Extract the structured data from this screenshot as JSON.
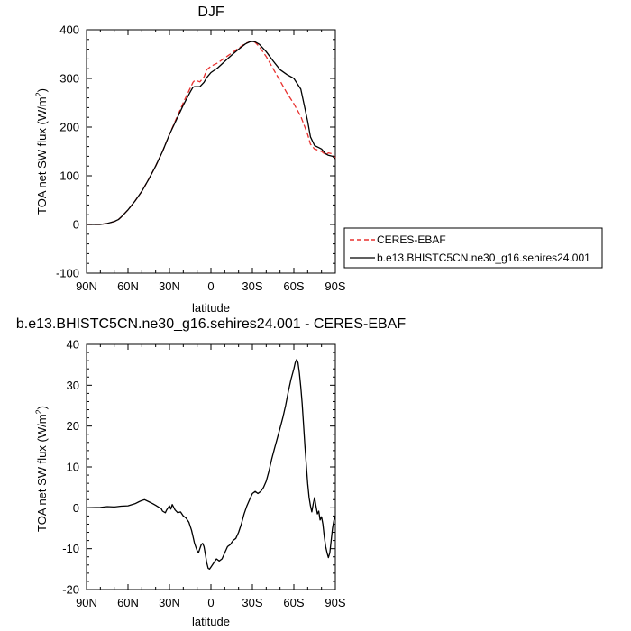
{
  "chart_data": [
    {
      "type": "line",
      "title": "DJF",
      "xlabel": "latitude",
      "ylabel": "TOA net SW flux (W/m²)",
      "ylabel_main": "TOA net SW flux (W/m",
      "ylabel_sup": "2",
      "ylabel_close": ")",
      "xlim": [
        90,
        -90
      ],
      "ylim": [
        -100,
        400
      ],
      "xticks": [
        90,
        60,
        30,
        0,
        -30,
        -60,
        -90
      ],
      "xtick_labels": [
        "90N",
        "60N",
        "30N",
        "0",
        "30S",
        "60S",
        "90S"
      ],
      "yticks": [
        -100,
        0,
        100,
        200,
        300,
        400
      ],
      "ytick_labels": [
        "-100",
        "0",
        "100",
        "200",
        "300",
        "400"
      ],
      "legend_position": "right-outside",
      "series": [
        {
          "name": "CERES-EBAF",
          "color": "#e8312f",
          "dash": "dashed",
          "x": [
            90,
            85,
            80,
            75,
            70,
            67,
            65,
            60,
            55,
            50,
            45,
            40,
            35,
            30,
            25,
            20,
            15,
            13,
            12,
            10,
            8,
            5,
            3,
            0,
            -5,
            -10,
            -15,
            -20,
            -25,
            -28,
            -30,
            -32,
            -35,
            -40,
            -45,
            -50,
            -55,
            -60,
            -65,
            -70,
            -72,
            -75,
            -78,
            -80,
            -83,
            -85,
            -88,
            -90
          ],
          "y": [
            0,
            0,
            0,
            2,
            6,
            10,
            15,
            30,
            48,
            68,
            93,
            120,
            150,
            185,
            218,
            250,
            280,
            292,
            295,
            295,
            293,
            303,
            318,
            325,
            332,
            342,
            352,
            362,
            372,
            375,
            376,
            374,
            365,
            345,
            320,
            295,
            270,
            248,
            222,
            185,
            165,
            155,
            152,
            150,
            143,
            147,
            145,
            136
          ]
        },
        {
          "name": "b.e13.BHISTC5CN.ne30_g16.sehires24.001",
          "color": "#000000",
          "dash": "solid",
          "x": [
            90,
            85,
            80,
            75,
            70,
            67,
            65,
            60,
            55,
            50,
            45,
            40,
            35,
            30,
            25,
            20,
            15,
            13,
            12,
            10,
            8,
            5,
            3,
            0,
            -5,
            -10,
            -15,
            -20,
            -25,
            -28,
            -30,
            -32,
            -35,
            -40,
            -45,
            -50,
            -55,
            -60,
            -65,
            -70,
            -72,
            -75,
            -78,
            -80,
            -83,
            -85,
            -88,
            -90
          ],
          "y": [
            0,
            0,
            0,
            2,
            6,
            10,
            15,
            30,
            48,
            68,
            93,
            120,
            150,
            185,
            215,
            245,
            272,
            282,
            283,
            283,
            283,
            292,
            302,
            312,
            322,
            335,
            348,
            360,
            371,
            375,
            376,
            375,
            370,
            355,
            336,
            318,
            308,
            300,
            278,
            212,
            180,
            162,
            158,
            155,
            145,
            142,
            140,
            135
          ]
        }
      ]
    },
    {
      "type": "line",
      "title": "b.e13.BHISTC5CN.ne30_g16.sehires24.001 - CERES-EBAF",
      "xlabel": "latitude",
      "ylabel": "TOA net SW flux (W/m²)",
      "ylabel_main": "TOA net SW flux (W/m",
      "ylabel_sup": "2",
      "ylabel_close": ")",
      "xlim": [
        90,
        -90
      ],
      "ylim": [
        -20,
        40
      ],
      "xticks": [
        90,
        60,
        30,
        0,
        -30,
        -60,
        -90
      ],
      "xtick_labels": [
        "90N",
        "60N",
        "30N",
        "0",
        "30S",
        "60S",
        "90S"
      ],
      "yticks": [
        -20,
        -10,
        0,
        10,
        20,
        30,
        40
      ],
      "ytick_labels": [
        "-20",
        "-10",
        "0",
        "10",
        "20",
        "30",
        "40"
      ],
      "series": [
        {
          "color": "#000000",
          "dash": "solid",
          "x": [
            90,
            80,
            75,
            70,
            65,
            60,
            55,
            52,
            50,
            48,
            45,
            42,
            40,
            38,
            36,
            35,
            33,
            32,
            30,
            29,
            28,
            26,
            24,
            22,
            20,
            18,
            16,
            14,
            13,
            12,
            11,
            10,
            9,
            8,
            7,
            6,
            5,
            4,
            3,
            2,
            1,
            0,
            -2,
            -4,
            -6,
            -8,
            -10,
            -12,
            -14,
            -16,
            -18,
            -20,
            -22,
            -24,
            -26,
            -28,
            -30,
            -32,
            -34,
            -36,
            -38,
            -40,
            -42,
            -44,
            -46,
            -48,
            -50,
            -52,
            -54,
            -56,
            -58,
            -60,
            -61,
            -62,
            -63,
            -64,
            -65,
            -66,
            -67,
            -68,
            -69,
            -70,
            -71,
            -72,
            -73,
            -74,
            -75,
            -76,
            -77,
            -78,
            -79,
            -80,
            -81,
            -82,
            -83,
            -84,
            -85,
            -86,
            -87,
            -88,
            -89,
            -90
          ],
          "y": [
            0,
            0.1,
            0.3,
            0.2,
            0.4,
            0.5,
            1.0,
            1.5,
            1.8,
            2.0,
            1.5,
            1.0,
            0.6,
            0.2,
            -0.2,
            -0.8,
            -1.2,
            -0.5,
            0.5,
            -0.3,
            0.8,
            -0.5,
            -1.2,
            -1.0,
            -2.0,
            -2.5,
            -3.5,
            -5.5,
            -7.0,
            -8.5,
            -9.5,
            -10.5,
            -11.0,
            -10.0,
            -9.0,
            -8.7,
            -9.5,
            -11.5,
            -13.5,
            -14.8,
            -15.0,
            -14.5,
            -13.5,
            -12.5,
            -13.0,
            -12.5,
            -11.0,
            -9.5,
            -9.0,
            -8.0,
            -7.5,
            -6.0,
            -4.0,
            -1.5,
            0.5,
            2.0,
            3.5,
            4.0,
            3.5,
            4.0,
            5.0,
            6.5,
            9.0,
            12.0,
            14.5,
            17.0,
            19.5,
            22.0,
            25.0,
            28.5,
            31.5,
            34.0,
            35.5,
            36.3,
            35.5,
            33.0,
            29.5,
            25.5,
            20.5,
            15.0,
            10.5,
            6.0,
            2.5,
            0.5,
            -1.0,
            1.0,
            2.5,
            0.5,
            -1.5,
            -0.8,
            -3.0,
            -2.2,
            -4.0,
            -7.0,
            -9.5,
            -11.0,
            -12.2,
            -11.0,
            -8.0,
            -5.0,
            -3.0,
            -2.0
          ]
        }
      ]
    }
  ]
}
